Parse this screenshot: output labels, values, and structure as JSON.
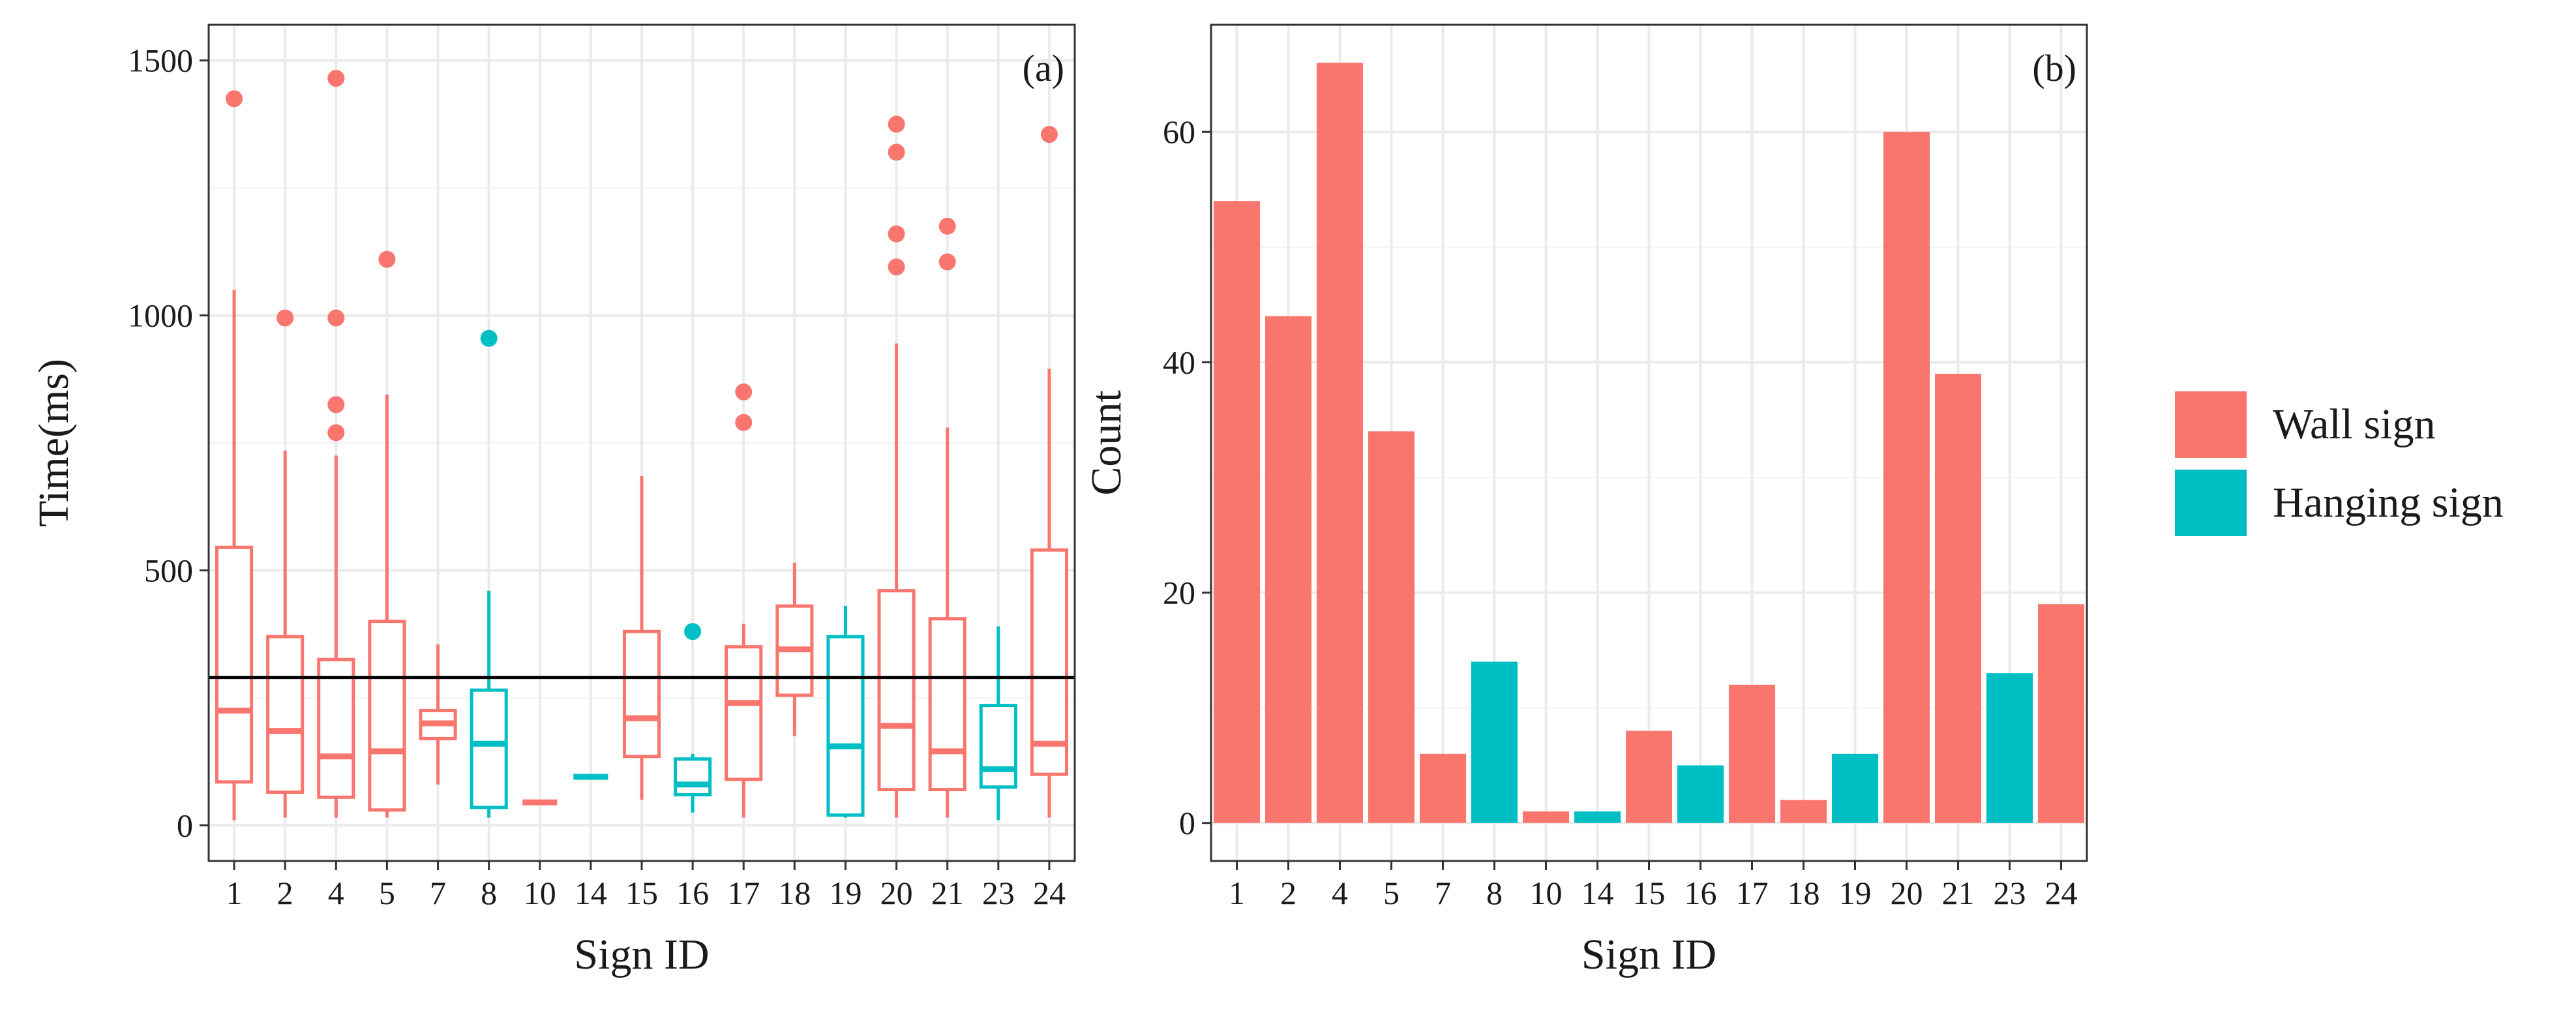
{
  "colors": {
    "wall": "#F8766D",
    "hanging": "#00BFC4",
    "grid": "#EBEBEB",
    "border": "#333333",
    "hline": "#000000"
  },
  "legend": {
    "items": [
      {
        "label": "Wall sign",
        "color": "#F8766D"
      },
      {
        "label": "Hanging sign",
        "color": "#00BFC4"
      }
    ]
  },
  "chart_data": [
    {
      "type": "box",
      "panel_label": "(a)",
      "xlabel": "Sign ID",
      "ylabel": "Time(ms)",
      "ylim": [
        -70,
        1570
      ],
      "yticks": [
        0,
        500,
        1000,
        1500
      ],
      "grid": true,
      "reference_line_y": 290,
      "categories": [
        "1",
        "2",
        "4",
        "5",
        "7",
        "8",
        "10",
        "14",
        "15",
        "16",
        "17",
        "18",
        "19",
        "20",
        "21",
        "23",
        "24"
      ],
      "boxes": [
        {
          "id": "1",
          "type": "Wall sign",
          "lower_whisker": 10,
          "q1": 85,
          "median": 225,
          "q3": 545,
          "upper_whisker": 1050,
          "outliers": [
            1425
          ]
        },
        {
          "id": "2",
          "type": "Wall sign",
          "lower_whisker": 15,
          "q1": 65,
          "median": 185,
          "q3": 370,
          "upper_whisker": 735,
          "outliers": [
            995
          ]
        },
        {
          "id": "4",
          "type": "Wall sign",
          "lower_whisker": 15,
          "q1": 55,
          "median": 135,
          "q3": 325,
          "upper_whisker": 725,
          "outliers": [
            770,
            825,
            995,
            1465
          ]
        },
        {
          "id": "5",
          "type": "Wall sign",
          "lower_whisker": 15,
          "q1": 30,
          "median": 145,
          "q3": 400,
          "upper_whisker": 845,
          "outliers": [
            1110
          ]
        },
        {
          "id": "7",
          "type": "Wall sign",
          "lower_whisker": 80,
          "q1": 170,
          "median": 200,
          "q3": 225,
          "upper_whisker": 355,
          "outliers": []
        },
        {
          "id": "8",
          "type": "Hanging sign",
          "lower_whisker": 15,
          "q1": 35,
          "median": 160,
          "q3": 265,
          "upper_whisker": 460,
          "outliers": [
            955
          ]
        },
        {
          "id": "10",
          "type": "Wall sign",
          "lower_whisker": 45,
          "q1": 45,
          "median": 45,
          "q3": 45,
          "upper_whisker": 45,
          "outliers": []
        },
        {
          "id": "14",
          "type": "Hanging sign",
          "lower_whisker": 95,
          "q1": 95,
          "median": 95,
          "q3": 95,
          "upper_whisker": 95,
          "outliers": []
        },
        {
          "id": "15",
          "type": "Wall sign",
          "lower_whisker": 50,
          "q1": 135,
          "median": 210,
          "q3": 380,
          "upper_whisker": 685,
          "outliers": []
        },
        {
          "id": "16",
          "type": "Hanging sign",
          "lower_whisker": 25,
          "q1": 60,
          "median": 80,
          "q3": 130,
          "upper_whisker": 140,
          "outliers": [
            380
          ]
        },
        {
          "id": "17",
          "type": "Wall sign",
          "lower_whisker": 15,
          "q1": 90,
          "median": 240,
          "q3": 350,
          "upper_whisker": 395,
          "outliers": [
            790,
            850
          ]
        },
        {
          "id": "18",
          "type": "Wall sign",
          "lower_whisker": 175,
          "q1": 255,
          "median": 345,
          "q3": 430,
          "upper_whisker": 515,
          "outliers": []
        },
        {
          "id": "19",
          "type": "Hanging sign",
          "lower_whisker": 15,
          "q1": 20,
          "median": 155,
          "q3": 370,
          "upper_whisker": 430,
          "outliers": []
        },
        {
          "id": "20",
          "type": "Wall sign",
          "lower_whisker": 15,
          "q1": 70,
          "median": 195,
          "q3": 460,
          "upper_whisker": 945,
          "outliers": [
            1095,
            1160,
            1320,
            1375
          ]
        },
        {
          "id": "21",
          "type": "Wall sign",
          "lower_whisker": 15,
          "q1": 70,
          "median": 145,
          "q3": 405,
          "upper_whisker": 780,
          "outliers": [
            1105,
            1175
          ]
        },
        {
          "id": "23",
          "type": "Hanging sign",
          "lower_whisker": 10,
          "q1": 75,
          "median": 110,
          "q3": 235,
          "upper_whisker": 390,
          "outliers": []
        },
        {
          "id": "24",
          "type": "Wall sign",
          "lower_whisker": 15,
          "q1": 100,
          "median": 160,
          "q3": 540,
          "upper_whisker": 895,
          "outliers": [
            1355
          ]
        }
      ]
    },
    {
      "type": "bar",
      "panel_label": "(b)",
      "xlabel": "Sign ID",
      "ylabel": "Count",
      "ylim": [
        -3.3,
        69.3
      ],
      "yticks": [
        0,
        20,
        40,
        60
      ],
      "grid": true,
      "legend_position": "right",
      "categories": [
        "1",
        "2",
        "4",
        "5",
        "7",
        "8",
        "10",
        "14",
        "15",
        "16",
        "17",
        "18",
        "19",
        "20",
        "21",
        "23",
        "24"
      ],
      "values": [
        54,
        44,
        66,
        34,
        6,
        14,
        1,
        1,
        8,
        5,
        12,
        2,
        6,
        60,
        39,
        13,
        19
      ],
      "groups": [
        "Wall sign",
        "Wall sign",
        "Wall sign",
        "Wall sign",
        "Wall sign",
        "Hanging sign",
        "Wall sign",
        "Hanging sign",
        "Wall sign",
        "Hanging sign",
        "Wall sign",
        "Wall sign",
        "Hanging sign",
        "Wall sign",
        "Wall sign",
        "Hanging sign",
        "Wall sign"
      ]
    }
  ]
}
